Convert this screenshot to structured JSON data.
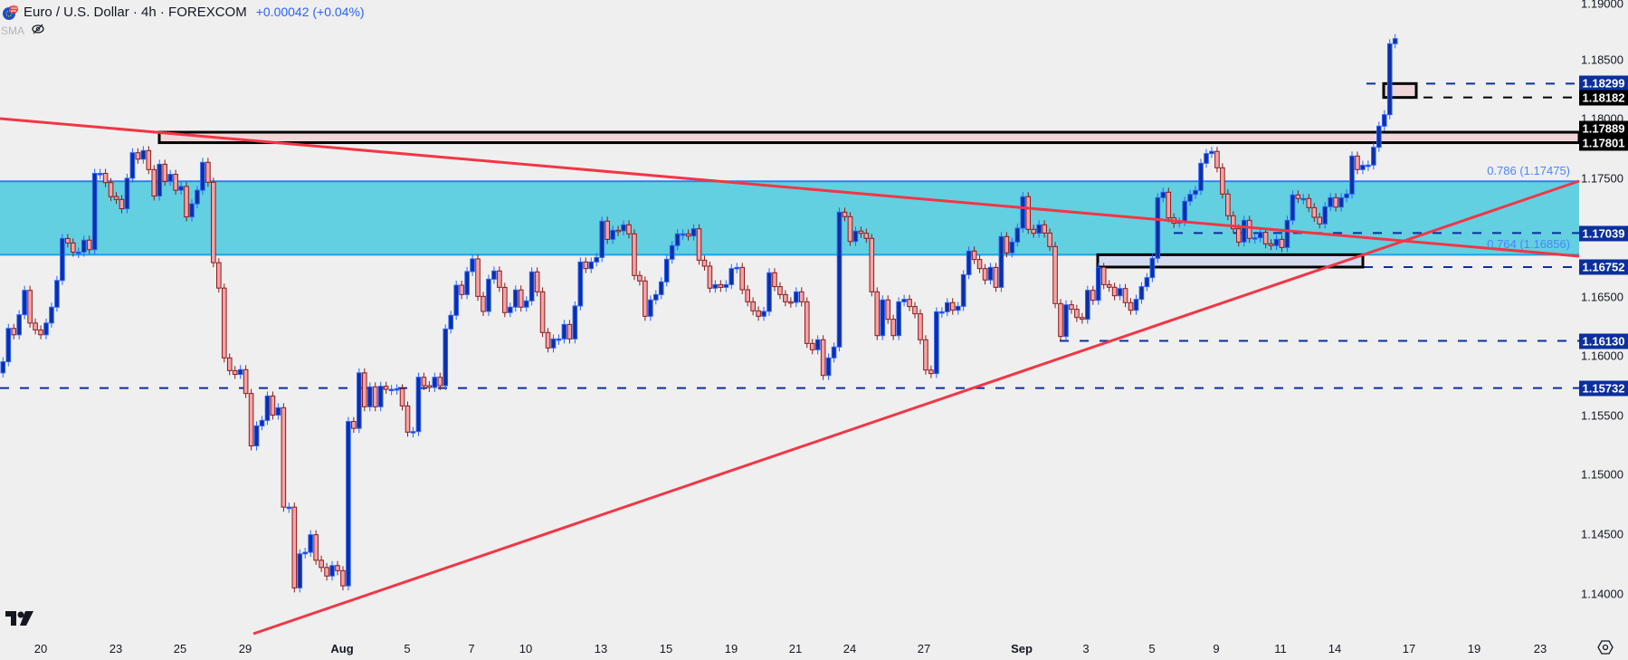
{
  "header": {
    "title": "Euro / U.S. Dollar · 4h · FOREXCOM",
    "change": "+0.00042 (+0.04%)",
    "indicator": "SMA"
  },
  "colors": {
    "background": "#efefef",
    "bull_body": "#0c2fa3",
    "bull_border": "#2962ff",
    "bear_body": "#f5a3a6",
    "bear_border": "#8b1a1a",
    "trendline": "#f23645",
    "fib_zone": "#62d0e0",
    "fib_line": "#2196f3",
    "level_blue": "#0c2f9c",
    "box_fill": "#f1d6d9",
    "box_fill_blue": "#d5dcf0"
  },
  "price_axis": {
    "ticks": [
      "1.19000",
      "1.18500",
      "1.18000",
      "1.17500",
      "1.16500",
      "1.16000",
      "1.15500",
      "1.15000",
      "1.14500",
      "1.14000"
    ],
    "badges": [
      {
        "label": "1.18299",
        "style": "navy"
      },
      {
        "label": "1.18182",
        "style": "black"
      },
      {
        "label": "1.17889",
        "style": "black"
      },
      {
        "label": "1.17801",
        "style": "black"
      },
      {
        "label": "1.17039",
        "style": "navy"
      },
      {
        "label": "1.16752",
        "style": "navy"
      },
      {
        "label": "1.16130",
        "style": "navy"
      },
      {
        "label": "1.15732",
        "style": "navy"
      }
    ]
  },
  "time_axis": {
    "labels": [
      "20",
      "23",
      "25",
      "29",
      "Aug",
      "5",
      "7",
      "10",
      "13",
      "15",
      "19",
      "21",
      "24",
      "27",
      "Sep",
      "3",
      "5",
      "9",
      "11",
      "14",
      "17",
      "19",
      "23"
    ]
  },
  "fib_labels": {
    "upper": "0.786 (1.17475)",
    "lower": "0.764 (1.16856)"
  },
  "chart_data": {
    "type": "candlestick",
    "title": "Euro / U.S. Dollar · 4h · FOREXCOM",
    "timeframe": "4h",
    "ylim": [
      1.1365,
      1.1902
    ],
    "first_open": 1.1586,
    "closes": [
      1.15954,
      1.16235,
      1.16181,
      1.1635,
      1.16556,
      1.1628,
      1.16222,
      1.16181,
      1.1628,
      1.16414,
      1.16639,
      1.16993,
      1.16955,
      1.16878,
      1.16878,
      1.16979,
      1.16899,
      1.17542,
      1.17542,
      1.17464,
      1.17346,
      1.17322,
      1.17244,
      1.17501,
      1.17716,
      1.17662,
      1.17734,
      1.17574,
      1.17351,
      1.17619,
      1.17475,
      1.17534,
      1.174,
      1.17432,
      1.17175,
      1.17285,
      1.174,
      1.17635,
      1.17467,
      1.16789,
      1.16575,
      1.15986,
      1.15879,
      1.15847,
      1.15887,
      1.15686,
      1.15244,
      1.15413,
      1.15459,
      1.15665,
      1.15504,
      1.15566,
      1.14728,
      1.14728,
      1.14047,
      1.14334,
      1.14347,
      1.14495,
      1.1428,
      1.14219,
      1.14147,
      1.14235,
      1.14192,
      1.14064,
      1.1545,
      1.15392,
      1.1586,
      1.15574,
      1.15742,
      1.15574,
      1.15747,
      1.15721,
      1.15721,
      1.15726,
      1.15581,
      1.1536,
      1.15365,
      1.15823,
      1.15752,
      1.15737,
      1.15823,
      1.15752,
      1.1623,
      1.16345,
      1.16599,
      1.1652,
      1.16714,
      1.16821,
      1.16505,
      1.16378,
      1.1665,
      1.16719,
      1.16581,
      1.16368,
      1.16414,
      1.16559,
      1.16414,
      1.16467,
      1.16711,
      1.16543,
      1.162,
      1.1607,
      1.16146,
      1.16146,
      1.16268,
      1.16146,
      1.16424,
      1.16795,
      1.16739,
      1.16795,
      1.16833,
      1.17139,
      1.16986,
      1.17062,
      1.17057,
      1.17108,
      1.17032,
      1.16681,
      1.16635,
      1.16337,
      1.16475,
      1.1652,
      1.16627,
      1.16818,
      1.16933,
      1.17032,
      1.17032,
      1.17014,
      1.17075,
      1.1681,
      1.1676,
      1.16574,
      1.16604,
      1.16581,
      1.16604,
      1.16739,
      1.16749,
      1.16561,
      1.16459,
      1.16383,
      1.16337,
      1.16378,
      1.16704,
      1.16587,
      1.1652,
      1.16459,
      1.16454,
      1.16543,
      1.16459,
      1.16108,
      1.16055,
      1.16139,
      1.15838,
      1.15986,
      1.16078,
      1.17215,
      1.17177,
      1.16968,
      1.17055,
      1.17037,
      1.16994,
      1.16543,
      1.16174,
      1.16475,
      1.16312,
      1.16174,
      1.16459,
      1.1648,
      1.16419,
      1.16358,
      1.16139,
      1.15884,
      1.15854,
      1.16375,
      1.16375,
      1.16452,
      1.16388,
      1.16421,
      1.16688,
      1.16887,
      1.16816,
      1.16739,
      1.16643,
      1.16749,
      1.16581,
      1.17009,
      1.16872,
      1.16963,
      1.1708,
      1.17345,
      1.1707,
      1.17037,
      1.17108,
      1.17039,
      1.16925,
      1.16444,
      1.16167,
      1.16434,
      1.16396,
      1.16327,
      1.16312,
      1.16556,
      1.16472,
      1.16749,
      1.16604,
      1.16582,
      1.1651,
      1.16571,
      1.16452,
      1.16388,
      1.1648,
      1.16587,
      1.16663,
      1.16826,
      1.17337,
      1.17383,
      1.17167,
      1.17121,
      1.17134,
      1.17307,
      1.17365,
      1.17398,
      1.17627,
      1.17709,
      1.17727,
      1.17589,
      1.17368,
      1.17185,
      1.17075,
      1.16963,
      1.17146,
      1.16994,
      1.16999,
      1.17045,
      1.16948,
      1.16933,
      1.16986,
      1.16917,
      1.17146,
      1.1736,
      1.1733,
      1.1733,
      1.17253,
      1.17172,
      1.17116,
      1.17261,
      1.17337,
      1.17258,
      1.17337,
      1.17368,
      1.17688,
      1.17574,
      1.1761,
      1.17612,
      1.17762,
      1.1794,
      1.18037,
      1.18635,
      1.18678
    ],
    "fib_zone": {
      "upper": 1.17475,
      "lower": 1.16856
    },
    "levels": [
      1.18299,
      1.18182,
      1.17039,
      1.16752,
      1.1613,
      1.15732
    ],
    "zones": [
      {
        "top": 1.17889,
        "bottom": 1.17801
      },
      {
        "top": 1.18299,
        "bottom": 1.18182
      },
      {
        "top": 1.16856,
        "bottom": 1.16752
      }
    ]
  }
}
